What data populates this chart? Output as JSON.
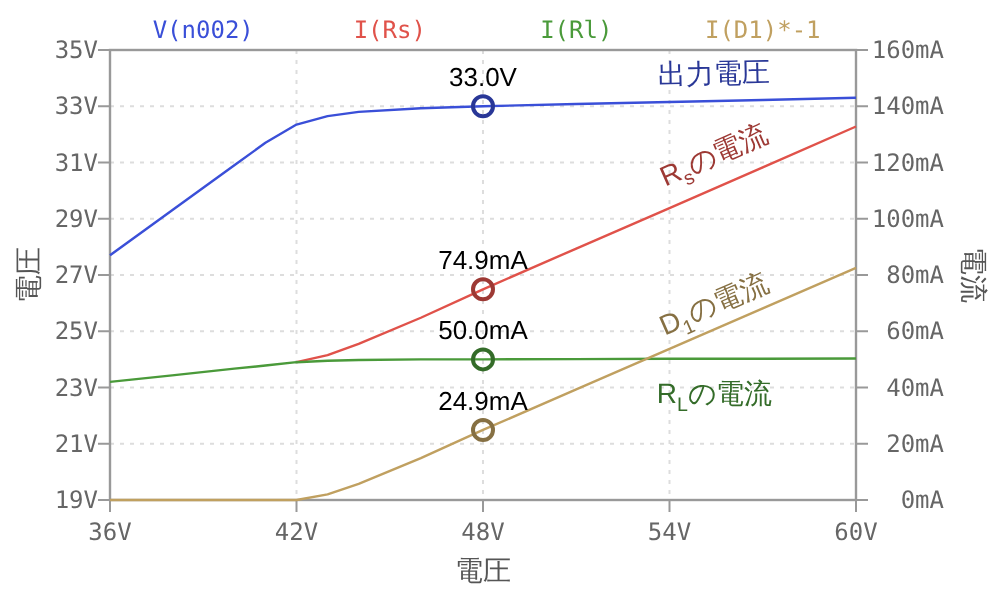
{
  "chart_data": {
    "type": "line",
    "xlabel": "電圧",
    "ylabel": "電圧",
    "y2label": "電流",
    "x": [
      36,
      38,
      40,
      41,
      42,
      43,
      44,
      46,
      48,
      51,
      54,
      57,
      60
    ],
    "series": [
      {
        "name": "V(n002)",
        "color": "#3a4fd8",
        "values": [
          27.7,
          29.3,
          30.9,
          31.7,
          32.35,
          32.65,
          32.8,
          32.93,
          33.0,
          33.08,
          33.15,
          33.22,
          33.3
        ],
        "value_labels": [
          null,
          null,
          null,
          null,
          null,
          null,
          null,
          null,
          "33.0V",
          null,
          null,
          null,
          null
        ]
      },
      {
        "name": "I(Rs)",
        "color": "#e0524a",
        "axis": "y2",
        "values": [
          null,
          null,
          null,
          null,
          49,
          51.5,
          55.5,
          64.8,
          74.9,
          89.4,
          103.8,
          118.3,
          132.8
        ],
        "value_labels": [
          null,
          null,
          null,
          null,
          null,
          null,
          null,
          null,
          "74.9mA",
          null,
          null,
          null,
          null
        ]
      },
      {
        "name": "I(Rl)",
        "color": "#4a9a3a",
        "axis": "y2",
        "values": [
          42,
          44.3,
          46.7,
          47.8,
          49,
          49.5,
          49.8,
          50.0,
          50.0,
          50.1,
          50.2,
          50.2,
          50.3
        ],
        "value_labels": [
          null,
          null,
          null,
          null,
          null,
          null,
          null,
          null,
          "50.0mA",
          null,
          null,
          null,
          null
        ]
      },
      {
        "name": "I(D1)*-1",
        "color": "#c0a060",
        "axis": "y2",
        "values": [
          0,
          0,
          0,
          0,
          0,
          2,
          5.7,
          14.9,
          24.9,
          39.3,
          53.7,
          68.1,
          82.5
        ],
        "value_labels": [
          null,
          null,
          null,
          null,
          null,
          null,
          null,
          null,
          "24.9mA",
          null,
          null,
          null,
          null
        ]
      }
    ],
    "xlim": [
      36,
      60
    ],
    "xticks": [
      {
        "value": 36,
        "label": "36V"
      },
      {
        "value": 42,
        "label": "42V"
      },
      {
        "value": 48,
        "label": "48V"
      },
      {
        "value": 54,
        "label": "54V"
      },
      {
        "value": 60,
        "label": "60V"
      }
    ],
    "ylim": [
      19,
      35
    ],
    "yticks": [
      {
        "value": 19,
        "label": "19V"
      },
      {
        "value": 21,
        "label": "21V"
      },
      {
        "value": 23,
        "label": "23V"
      },
      {
        "value": 25,
        "label": "25V"
      },
      {
        "value": 27,
        "label": "27V"
      },
      {
        "value": 29,
        "label": "29V"
      },
      {
        "value": 31,
        "label": "31V"
      },
      {
        "value": 33,
        "label": "33V"
      },
      {
        "value": 35,
        "label": "35V"
      }
    ],
    "y2lim": [
      0,
      160
    ],
    "y2ticks": [
      {
        "value": 0,
        "label": "0mA"
      },
      {
        "value": 20,
        "label": "20mA"
      },
      {
        "value": 40,
        "label": "40mA"
      },
      {
        "value": 60,
        "label": "60mA"
      },
      {
        "value": 80,
        "label": "80mA"
      },
      {
        "value": 100,
        "label": "100mA"
      },
      {
        "value": 120,
        "label": "120mA"
      },
      {
        "value": 140,
        "label": "140mA"
      },
      {
        "value": 160,
        "label": "160mA"
      }
    ],
    "annotations": [
      "出力電圧",
      "R$_{s}$の電流",
      "R$_{L}$の電流",
      "D$_{1}$の電流"
    ],
    "grid": true,
    "legend": "top"
  }
}
